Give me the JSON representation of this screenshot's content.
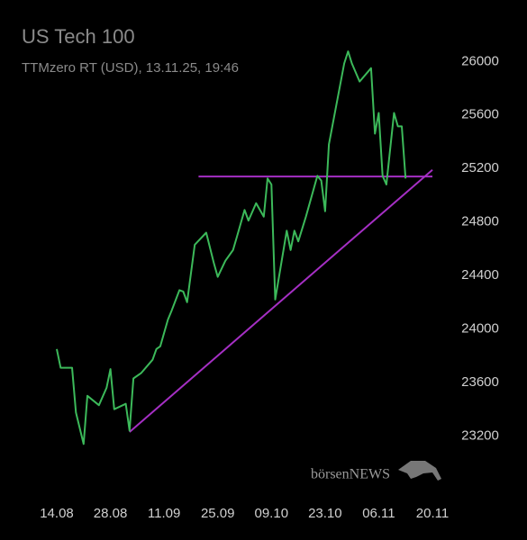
{
  "chart_data": {
    "type": "line",
    "title": "US Tech 100",
    "subtitle": "TTMzero RT (USD), 13.11.25, 19:46",
    "watermark": "börsenNEWS",
    "x": [
      "14.08",
      "15.08",
      "18.08",
      "19.08",
      "21.08",
      "22.08",
      "25.08",
      "27.08",
      "28.08",
      "29.08",
      "01.09",
      "02.09",
      "03.09",
      "05.09",
      "08.09",
      "09.09",
      "10.09",
      "12.09",
      "13.09",
      "15.09",
      "16.09",
      "17.09",
      "19.09",
      "22.09",
      "24.09",
      "25.09",
      "27.09",
      "29.09",
      "30.09",
      "02.10",
      "03.10",
      "05.10",
      "07.10",
      "08.10",
      "09.10",
      "10.10",
      "13.10",
      "14.10",
      "15.10",
      "16.10",
      "18.10",
      "21.10",
      "22.10",
      "23.10",
      "24.10",
      "28.10",
      "29.10",
      "30.10",
      "01.11",
      "04.11",
      "05.11",
      "06.11",
      "07.11",
      "08.11",
      "10.11",
      "11.11",
      "12.11",
      "13.11"
    ],
    "series": [
      {
        "name": "US Tech 100",
        "color": "#3cb95a",
        "values": [
          23850,
          23710,
          23710,
          23375,
          23140,
          23500,
          23430,
          23560,
          23700,
          23400,
          23440,
          23240,
          23630,
          23670,
          23770,
          23850,
          23870,
          24070,
          24140,
          24290,
          24280,
          24200,
          24630,
          24720,
          24490,
          24390,
          24510,
          24590,
          24690,
          24890,
          24810,
          24940,
          24840,
          25125,
          25080,
          24220,
          24735,
          24590,
          24735,
          24655,
          24840,
          25145,
          25110,
          24880,
          25380,
          25985,
          26075,
          25985,
          25850,
          25950,
          25460,
          25615,
          25145,
          25080,
          25615,
          25515,
          25515,
          25125
        ]
      }
    ],
    "lines": [
      {
        "color": "#a52fc4",
        "x": [
          "20.09",
          "20.11"
        ],
        "values": [
          25140,
          25140
        ]
      },
      {
        "color": "#a52fc4",
        "x": [
          "02.09",
          "20.11"
        ],
        "values": [
          23230,
          25190
        ]
      }
    ],
    "ylim": [
      22900,
      26150
    ],
    "yticks": [
      23200,
      23600,
      24000,
      24400,
      24800,
      25200,
      25600,
      26000
    ],
    "xticks": [
      "14.08",
      "28.08",
      "11.09",
      "25.09",
      "09.10",
      "23.10",
      "06.11",
      "20.11"
    ]
  }
}
